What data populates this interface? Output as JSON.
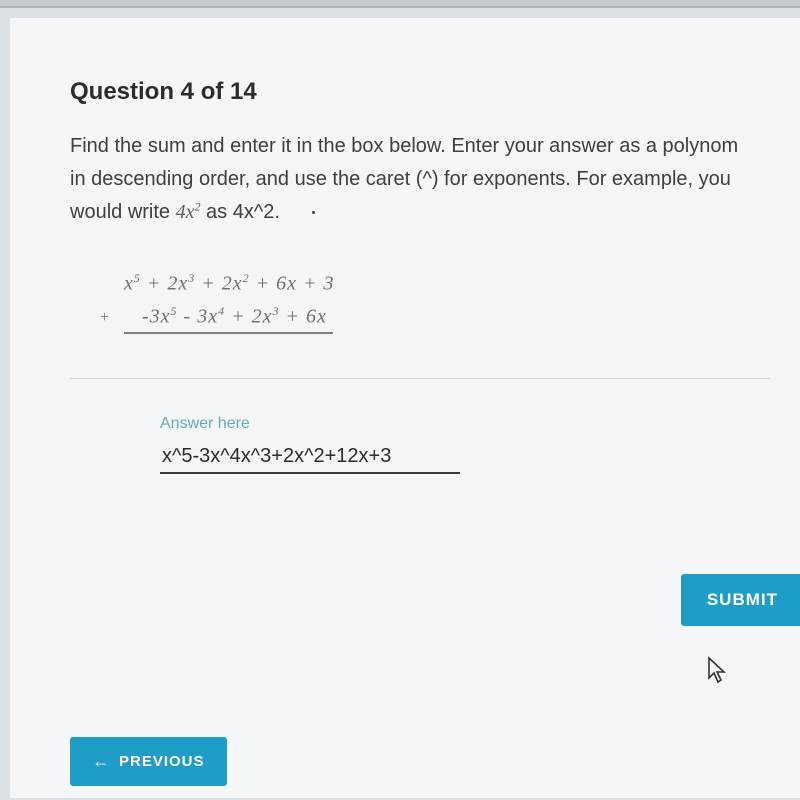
{
  "question": {
    "title": "Question 4 of 14",
    "body_line1": "Find the sum and enter it in the box below. Enter your answer as a polynom",
    "body_line2": "in descending order, and use the caret (^) for exponents. For example, you",
    "body_line3_prefix": "would write ",
    "body_line3_math": "4x²",
    "body_line3_suffix": " as 4x^2."
  },
  "math": {
    "row1_html": "&nbsp;&nbsp;&nbsp;&nbsp;x<sup>5</sup> + 2x<sup>3</sup> + 2x<sup>2</sup> + 6x + 3",
    "row2_op": "+",
    "row2_html": "&nbsp;&nbsp;&nbsp;-3x<sup>5</sup> - 3x<sup>4</sup> + 2x<sup>3</sup> + 6x"
  },
  "answer": {
    "label": "Answer here",
    "value": "x^5-3x^4x^3+2x^2+12x+3"
  },
  "buttons": {
    "submit": "SUBMIT",
    "previous": "PREVIOUS"
  },
  "colors": {
    "panel_bg": "#f4f6f8",
    "accent": "#1f9dc9",
    "text": "#3a4046",
    "answer_label": "#6aa9b8"
  }
}
